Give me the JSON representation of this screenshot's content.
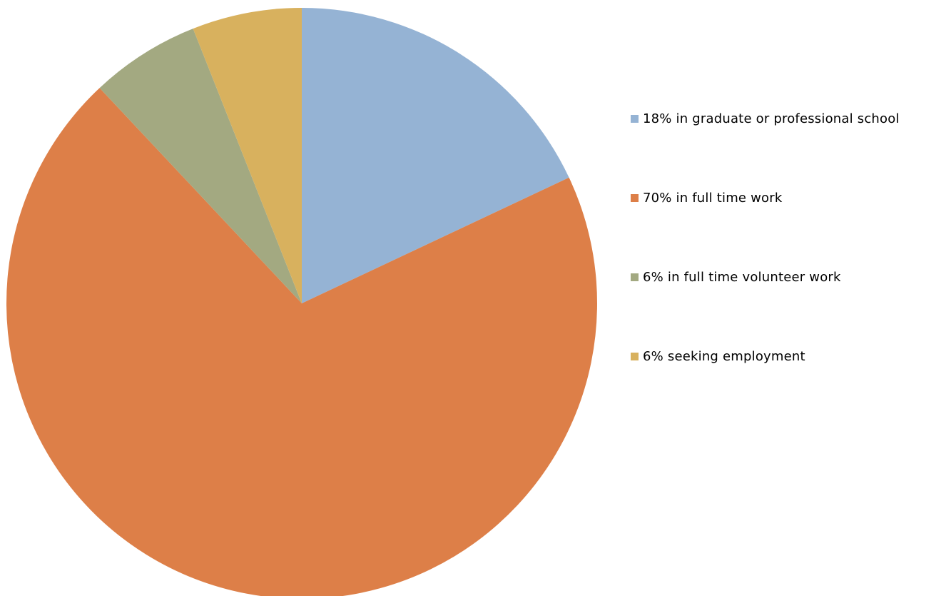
{
  "chart_data": {
    "type": "pie",
    "categories": [
      "18% in graduate or professional school",
      "70% in full time work",
      "6% in full time volunteer work",
      "6% seeking employment"
    ],
    "values": [
      18,
      70,
      6,
      6
    ],
    "colors": [
      "#95B3D4",
      "#DD7F48",
      "#A3A981",
      "#D8B15E"
    ],
    "start_angle": "top, clockwise",
    "legend_position": "right",
    "title": ""
  }
}
